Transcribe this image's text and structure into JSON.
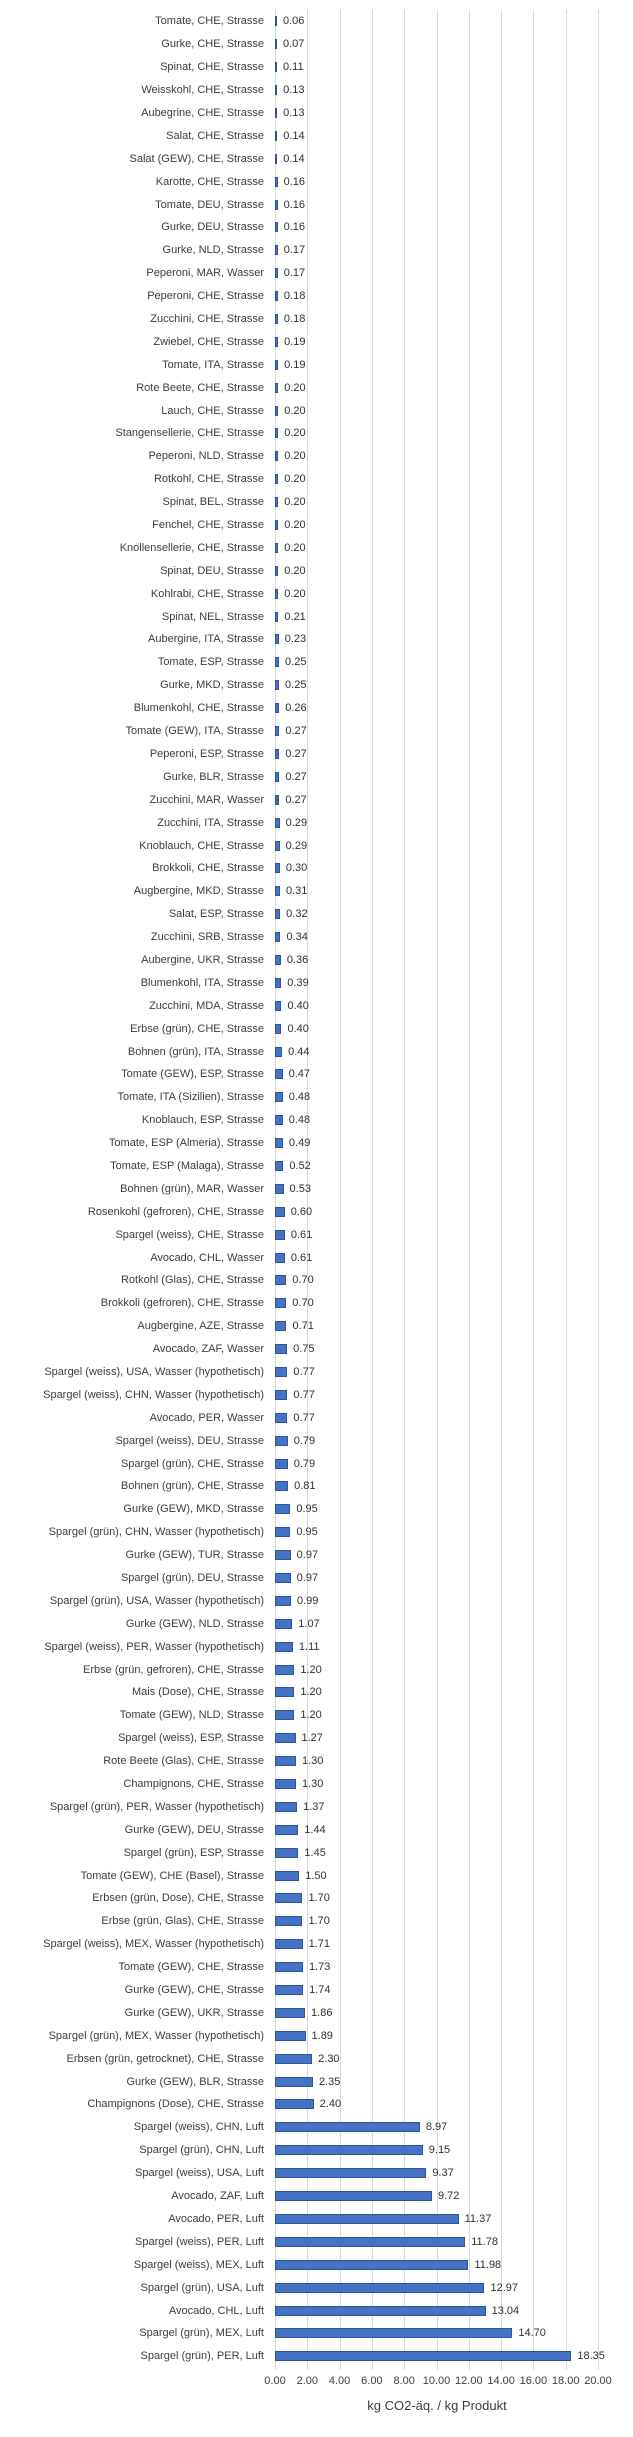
{
  "chart_data": {
    "type": "bar",
    "orientation": "horizontal",
    "title": "",
    "xlabel": "kg CO2-äq. / kg Produkt",
    "ylabel": "",
    "xlim": [
      0,
      20
    ],
    "grid": true,
    "legend": false,
    "value_labels_shown": true,
    "x_tick_labels": [
      "0.00",
      "2.00",
      "4.00",
      "6.00",
      "8.00",
      "10.00",
      "12.00",
      "14.00",
      "16.00",
      "18.00",
      "20.00"
    ],
    "colors": {
      "bar_fill": "#4472C4",
      "bar_border": "#2F5597",
      "gridline": "#D9D9D9",
      "text": "#3d3d3d"
    },
    "rows": [
      {
        "label": "Tomate, CHE, Strasse",
        "value": 0.06
      },
      {
        "label": "Gurke, CHE, Strasse",
        "value": 0.07
      },
      {
        "label": "Spinat, CHE, Strasse",
        "value": 0.11
      },
      {
        "label": "Weisskohl, CHE, Strasse",
        "value": 0.13
      },
      {
        "label": "Aubegrine, CHE, Strasse",
        "value": 0.13
      },
      {
        "label": "Salat, CHE, Strasse",
        "value": 0.14
      },
      {
        "label": "Salat (GEW), CHE, Strasse",
        "value": 0.14
      },
      {
        "label": "Karotte, CHE, Strasse",
        "value": 0.16
      },
      {
        "label": "Tomate, DEU, Strasse",
        "value": 0.16
      },
      {
        "label": "Gurke, DEU, Strasse",
        "value": 0.16
      },
      {
        "label": "Gurke, NLD, Strasse",
        "value": 0.17
      },
      {
        "label": "Peperoni, MAR, Wasser",
        "value": 0.17
      },
      {
        "label": "Peperoni, CHE, Strasse",
        "value": 0.18
      },
      {
        "label": "Zucchini, CHE, Strasse",
        "value": 0.18
      },
      {
        "label": "Zwiebel, CHE, Strasse",
        "value": 0.19
      },
      {
        "label": "Tomate, ITA, Strasse",
        "value": 0.19
      },
      {
        "label": "Rote Beete, CHE, Strasse",
        "value": 0.2
      },
      {
        "label": "Lauch, CHE, Strasse",
        "value": 0.2
      },
      {
        "label": "Stangensellerie, CHE, Strasse",
        "value": 0.2
      },
      {
        "label": "Peperoni, NLD, Strasse",
        "value": 0.2
      },
      {
        "label": "Rotkohl, CHE, Strasse",
        "value": 0.2
      },
      {
        "label": "Spinat, BEL, Strasse",
        "value": 0.2
      },
      {
        "label": "Fenchel, CHE, Strasse",
        "value": 0.2
      },
      {
        "label": "Knollensellerie, CHE, Strasse",
        "value": 0.2
      },
      {
        "label": "Spinat, DEU, Strasse",
        "value": 0.2
      },
      {
        "label": "Kohlrabi, CHE, Strasse",
        "value": 0.2
      },
      {
        "label": "Spinat, NEL, Strasse",
        "value": 0.21
      },
      {
        "label": "Aubergine, ITA, Strasse",
        "value": 0.23
      },
      {
        "label": "Tomate, ESP, Strasse",
        "value": 0.25
      },
      {
        "label": "Gurke, MKD, Strasse",
        "value": 0.25
      },
      {
        "label": "Blumenkohl, CHE, Strasse",
        "value": 0.26
      },
      {
        "label": "Tomate (GEW), ITA, Strasse",
        "value": 0.27
      },
      {
        "label": "Peperoni, ESP, Strasse",
        "value": 0.27
      },
      {
        "label": "Gurke, BLR, Strasse",
        "value": 0.27
      },
      {
        "label": "Zucchini, MAR, Wasser",
        "value": 0.27
      },
      {
        "label": "Zucchini, ITA, Strasse",
        "value": 0.29
      },
      {
        "label": "Knoblauch, CHE, Strasse",
        "value": 0.29
      },
      {
        "label": "Brokkoli, CHE, Strasse",
        "value": 0.3
      },
      {
        "label": "Augbergine, MKD, Strasse",
        "value": 0.31
      },
      {
        "label": "Salat, ESP, Strasse",
        "value": 0.32
      },
      {
        "label": "Zucchini, SRB, Strasse",
        "value": 0.34
      },
      {
        "label": "Aubergine, UKR, Strasse",
        "value": 0.36
      },
      {
        "label": "Blumenkohl, ITA, Strasse",
        "value": 0.39
      },
      {
        "label": "Zucchini, MDA, Strasse",
        "value": 0.4
      },
      {
        "label": "Erbse (grün), CHE, Strasse",
        "value": 0.4
      },
      {
        "label": "Bohnen (grün), ITA, Strasse",
        "value": 0.44
      },
      {
        "label": "Tomate (GEW), ESP, Strasse",
        "value": 0.47
      },
      {
        "label": "Tomate, ITA (Sizilien), Strasse",
        "value": 0.48
      },
      {
        "label": "Knoblauch, ESP, Strasse",
        "value": 0.48
      },
      {
        "label": "Tomate, ESP (Almeria), Strasse",
        "value": 0.49
      },
      {
        "label": "Tomate, ESP (Malaga), Strasse",
        "value": 0.52
      },
      {
        "label": "Bohnen (grün), MAR, Wasser",
        "value": 0.53
      },
      {
        "label": "Rosenkohl (gefroren), CHE, Strasse",
        "value": 0.6
      },
      {
        "label": "Spargel (weiss), CHE, Strasse",
        "value": 0.61
      },
      {
        "label": "Avocado, CHL, Wasser",
        "value": 0.61
      },
      {
        "label": "Rotkohl (Glas), CHE, Strasse",
        "value": 0.7
      },
      {
        "label": "Brokkoli (gefroren), CHE, Strasse",
        "value": 0.7
      },
      {
        "label": "Augbergine, AZE, Strasse",
        "value": 0.71
      },
      {
        "label": "Avocado, ZAF, Wasser",
        "value": 0.75
      },
      {
        "label": "Spargel (weiss), USA, Wasser (hypothetisch)",
        "value": 0.77
      },
      {
        "label": "Spargel (weiss), CHN, Wasser (hypothetisch)",
        "value": 0.77
      },
      {
        "label": "Avocado, PER, Wasser",
        "value": 0.77
      },
      {
        "label": "Spargel (weiss), DEU, Strasse",
        "value": 0.79
      },
      {
        "label": "Spargel (grün), CHE, Strasse",
        "value": 0.79
      },
      {
        "label": "Bohnen (grün), CHE, Strasse",
        "value": 0.81
      },
      {
        "label": "Gurke (GEW), MKD, Strasse",
        "value": 0.95
      },
      {
        "label": "Spargel (grün), CHN, Wasser (hypothetisch)",
        "value": 0.95
      },
      {
        "label": "Gurke (GEW), TUR, Strasse",
        "value": 0.97
      },
      {
        "label": "Spargel (grün), DEU, Strasse",
        "value": 0.97
      },
      {
        "label": "Spargel (grün), USA, Wasser (hypothetisch)",
        "value": 0.99
      },
      {
        "label": "Gurke (GEW), NLD, Strasse",
        "value": 1.07
      },
      {
        "label": "Spargel (weiss), PER, Wasser (hypothetisch)",
        "value": 1.11
      },
      {
        "label": "Erbse (grün, gefroren), CHE, Strasse",
        "value": 1.2
      },
      {
        "label": "Mais (Dose), CHE, Strasse",
        "value": 1.2
      },
      {
        "label": "Tomate (GEW), NLD, Strasse",
        "value": 1.2
      },
      {
        "label": "Spargel (weiss), ESP, Strasse",
        "value": 1.27
      },
      {
        "label": "Rote Beete (Glas), CHE, Strasse",
        "value": 1.3
      },
      {
        "label": "Champignons, CHE, Strasse",
        "value": 1.3
      },
      {
        "label": "Spargel (grün), PER, Wasser (hypothetisch)",
        "value": 1.37
      },
      {
        "label": "Gurke (GEW), DEU, Strasse",
        "value": 1.44
      },
      {
        "label": "Spargel (grün), ESP, Strasse",
        "value": 1.45
      },
      {
        "label": "Tomate (GEW), CHE (Basel), Strasse",
        "value": 1.5
      },
      {
        "label": "Erbsen (grün, Dose), CHE, Strasse",
        "value": 1.7
      },
      {
        "label": "Erbse (grün, Glas), CHE, Strasse",
        "value": 1.7
      },
      {
        "label": "Spargel (weiss), MEX, Wasser (hypothetisch)",
        "value": 1.71
      },
      {
        "label": "Tomate (GEW), CHE, Strasse",
        "value": 1.73
      },
      {
        "label": "Gurke (GEW), CHE, Strasse",
        "value": 1.74
      },
      {
        "label": "Gurke (GEW), UKR, Strasse",
        "value": 1.86
      },
      {
        "label": "Spargel (grün), MEX, Wasser (hypothetisch)",
        "value": 1.89
      },
      {
        "label": "Erbsen (grün, getrocknet), CHE, Strasse",
        "value": 2.3
      },
      {
        "label": "Gurke (GEW), BLR, Strasse",
        "value": 2.35
      },
      {
        "label": "Champignons (Dose), CHE, Strasse",
        "value": 2.4
      },
      {
        "label": "Spargel (weiss), CHN, Luft",
        "value": 8.97
      },
      {
        "label": "Spargel (grün), CHN, Luft",
        "value": 9.15
      },
      {
        "label": "Spargel (weiss), USA, Luft",
        "value": 9.37
      },
      {
        "label": "Avocado, ZAF, Luft",
        "value": 9.72
      },
      {
        "label": "Avocado, PER, Luft",
        "value": 11.37
      },
      {
        "label": "Spargel (weiss), PER, Luft",
        "value": 11.78
      },
      {
        "label": "Spargel (weiss), MEX, Luft",
        "value": 11.98
      },
      {
        "label": "Spargel (grün), USA, Luft",
        "value": 12.97
      },
      {
        "label": "Avocado, CHL, Luft",
        "value": 13.04
      },
      {
        "label": "Spargel (grün), MEX, Luft",
        "value": 14.7
      },
      {
        "label": "Spargel (grün), PER, Luft",
        "value": 18.35
      }
    ]
  }
}
